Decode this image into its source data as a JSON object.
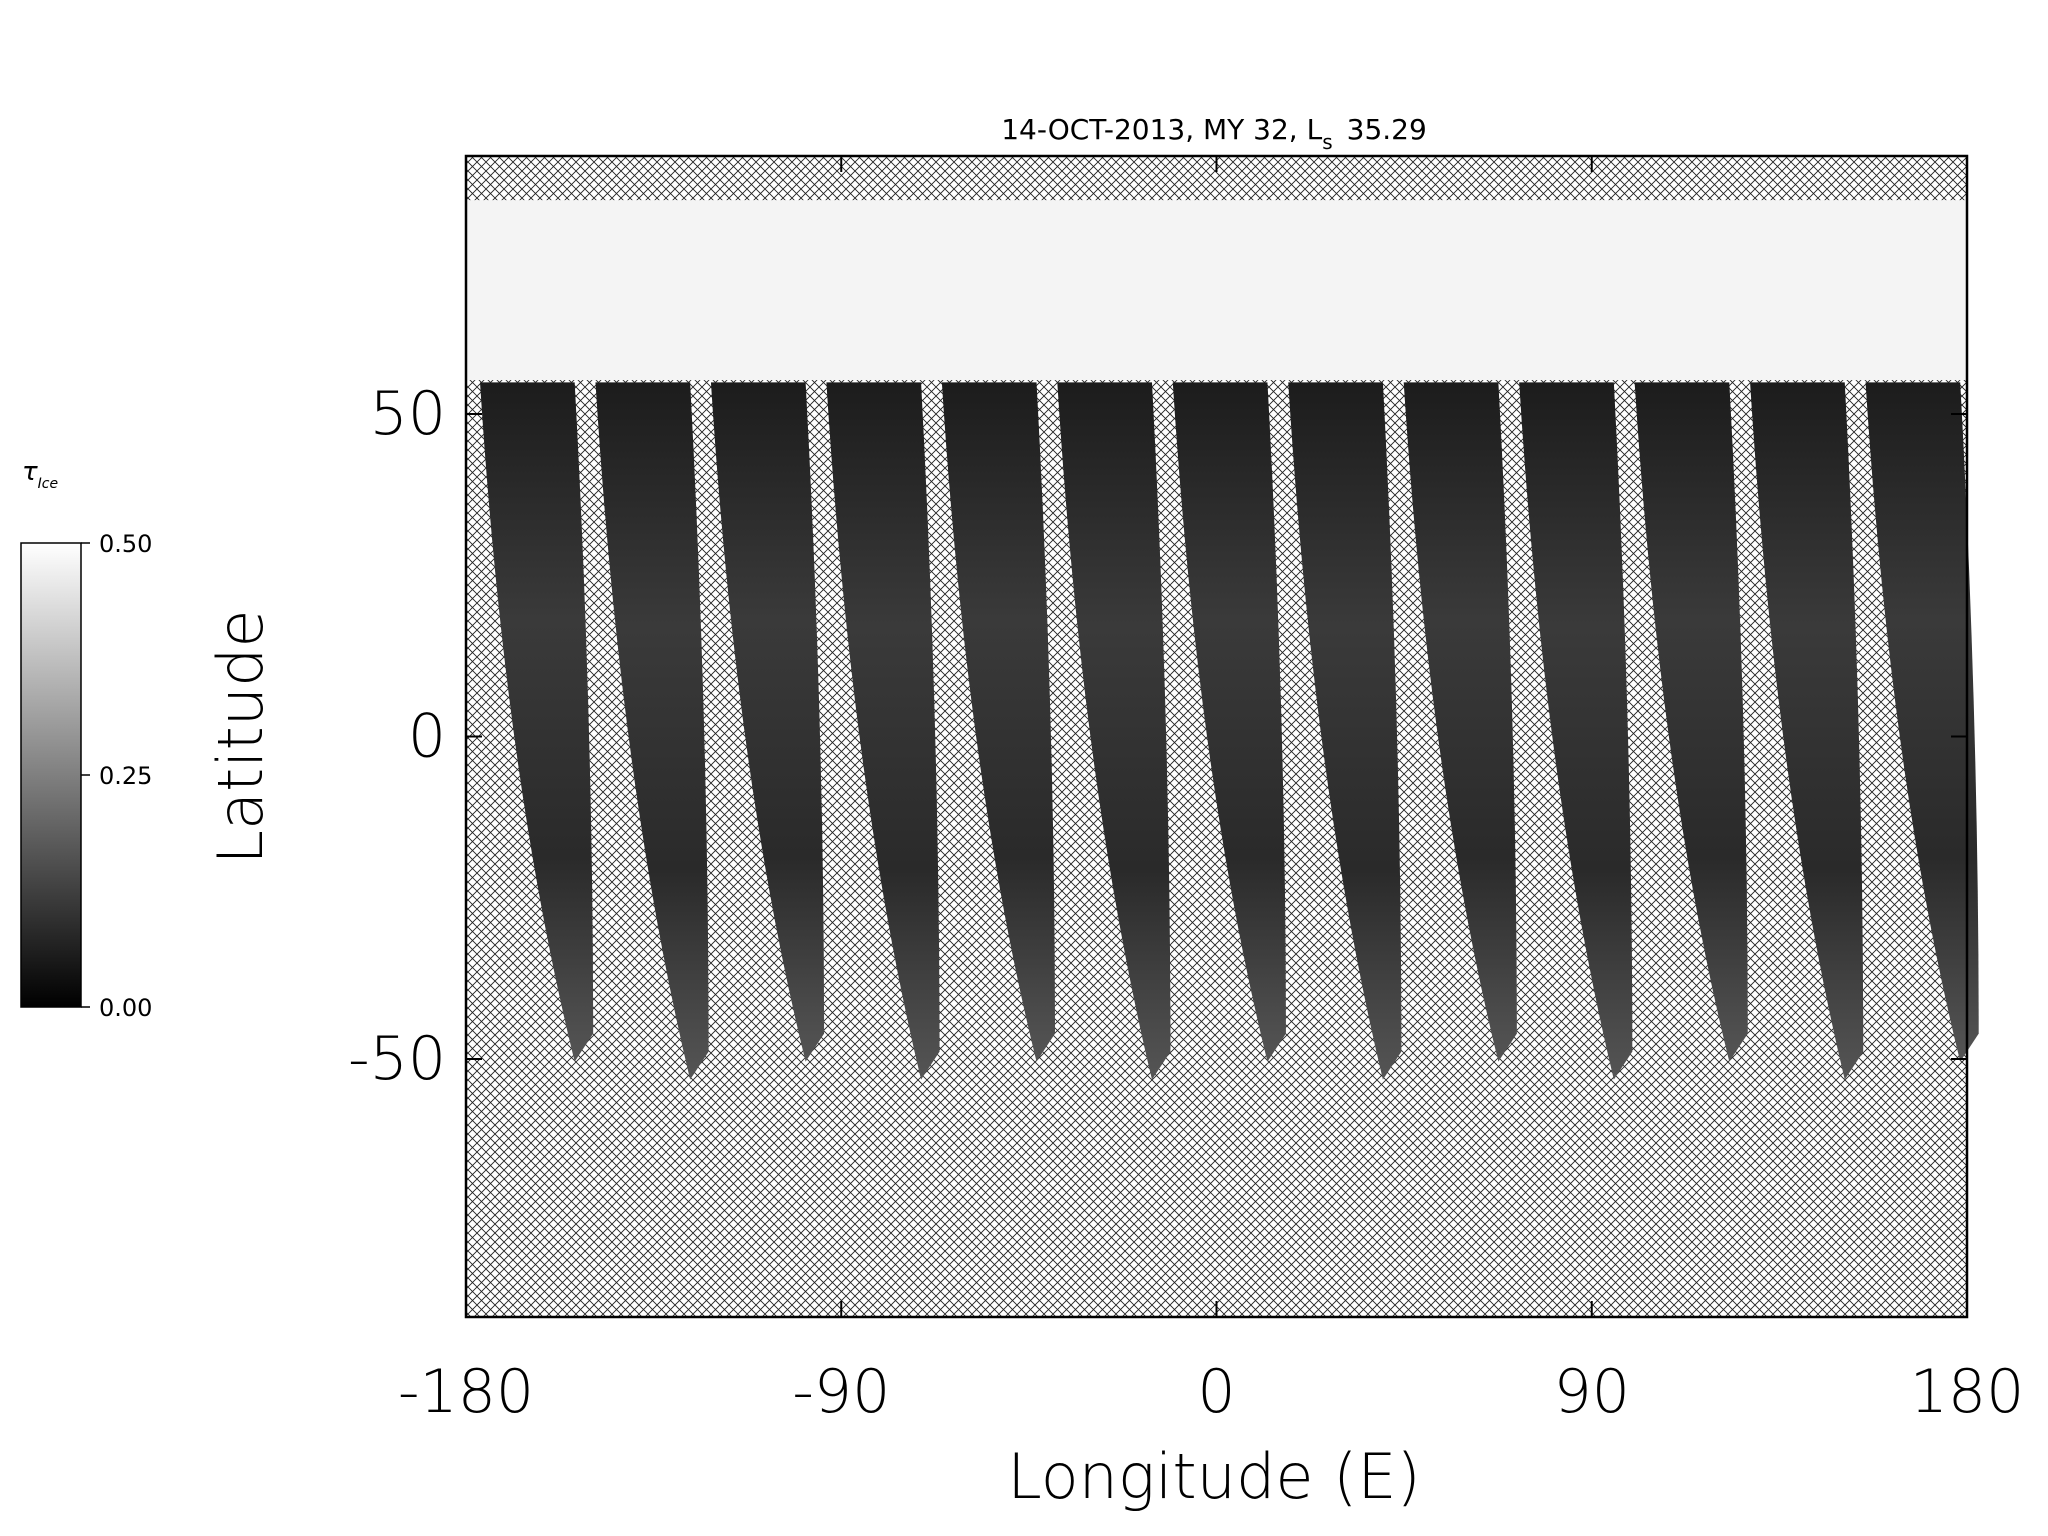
{
  "chart_data": {
    "type": "map",
    "title": "14-OCT-2013, MY 32,  L",
    "title_subscript": "s",
    "title_suffix": "35.29",
    "x_label": "Longitude (E)",
    "y_label": "Latitude",
    "xlim": [
      -180,
      180
    ],
    "xticks": [
      -180,
      -90,
      0,
      90,
      180
    ],
    "ylim": [
      -90,
      90
    ],
    "yticks": [
      -50,
      0,
      50
    ],
    "colorbar": {
      "label": "τ",
      "label_subscript": "Ice",
      "lim": [
        0,
        0.5
      ],
      "ticks": [
        {
          "value": 0,
          "label": "0.00"
        },
        {
          "value": 0.25,
          "label": "0.25"
        },
        {
          "value": 0.5,
          "label": "0.50"
        }
      ]
    }
  }
}
